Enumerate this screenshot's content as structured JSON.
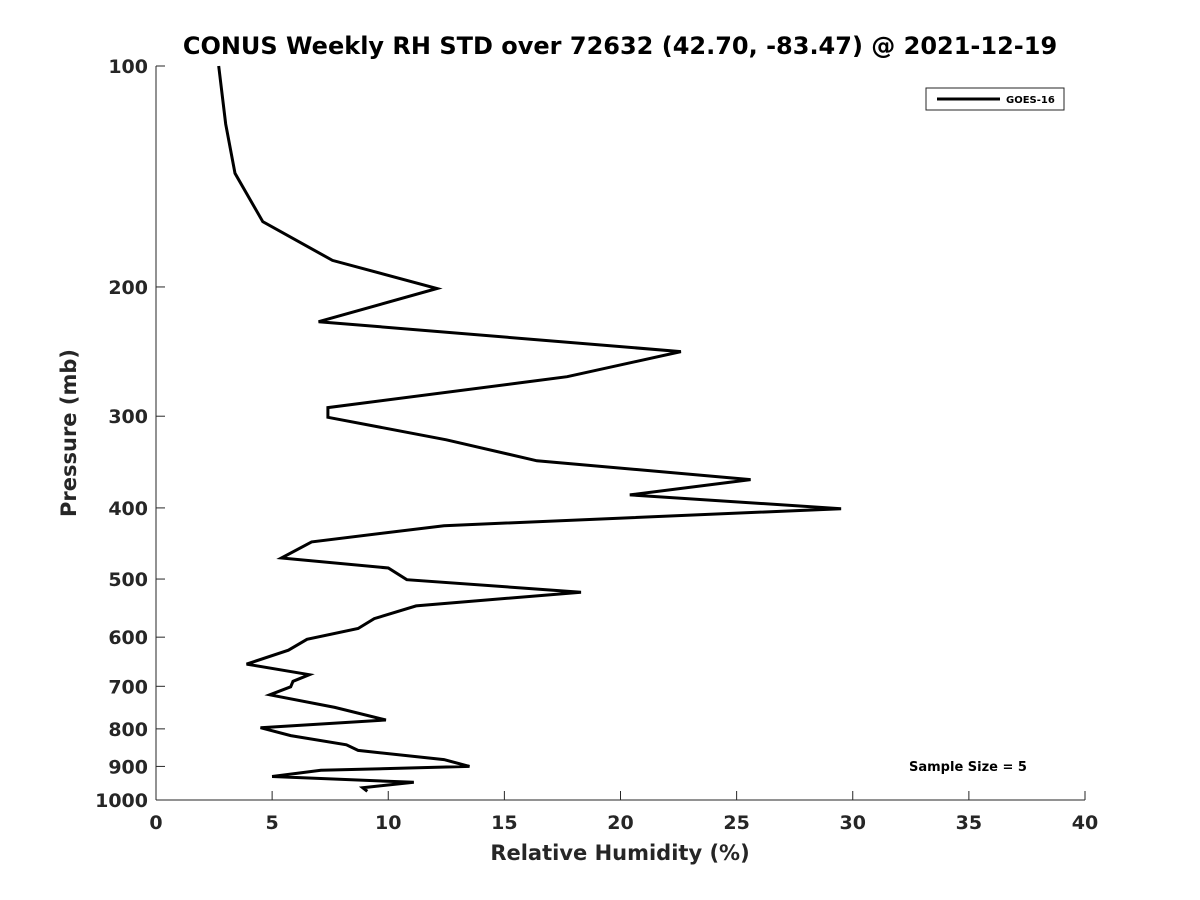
{
  "chart_data": {
    "type": "line",
    "title": "CONUS Weekly RH STD over 72632 (42.70, -83.47) @ 2021-12-19",
    "xlabel": "Relative Humidity (%)",
    "ylabel": "Pressure (mb)",
    "xlim": [
      0,
      40
    ],
    "ylim": [
      100,
      1000
    ],
    "yscale": "log",
    "yreversed": true,
    "grid": false,
    "legend_position": "top-right",
    "x_ticks": [
      "0",
      "5",
      "10",
      "15",
      "20",
      "25",
      "30",
      "35",
      "40"
    ],
    "y_ticks": [
      "100",
      "200",
      "300",
      "400",
      "500",
      "600",
      "700",
      "800",
      "900",
      "1000"
    ],
    "series": [
      {
        "name": "GOES-16",
        "color": "#000000",
        "x": [
          2.7,
          3.0,
          3.4,
          4.6,
          7.6,
          12.1,
          7.0,
          22.6,
          17.7,
          7.4,
          7.4,
          12.5,
          16.4,
          25.6,
          20.4,
          29.5,
          12.4,
          6.7,
          5.4,
          10.0,
          10.8,
          18.3,
          11.2,
          9.4,
          8.7,
          6.5,
          5.7,
          3.9,
          6.6,
          5.9,
          5.8,
          4.9,
          7.7,
          9.9,
          4.5,
          5.8,
          8.2,
          8.7,
          12.4,
          13.5,
          7.1,
          5.0,
          11.1,
          8.9,
          9.1
        ],
        "y": [
          100,
          120,
          140,
          163,
          184,
          201,
          223,
          245,
          265,
          292,
          301,
          323,
          345,
          366,
          384,
          401,
          423,
          445,
          468,
          483,
          501,
          521,
          544,
          566,
          584,
          604,
          625,
          653,
          675,
          689,
          701,
          719,
          748,
          778,
          797,
          817,
          841,
          856,
          881,
          900,
          911,
          929,
          946,
          962,
          973
        ]
      }
    ],
    "annotation": "Sample Size = 5"
  }
}
